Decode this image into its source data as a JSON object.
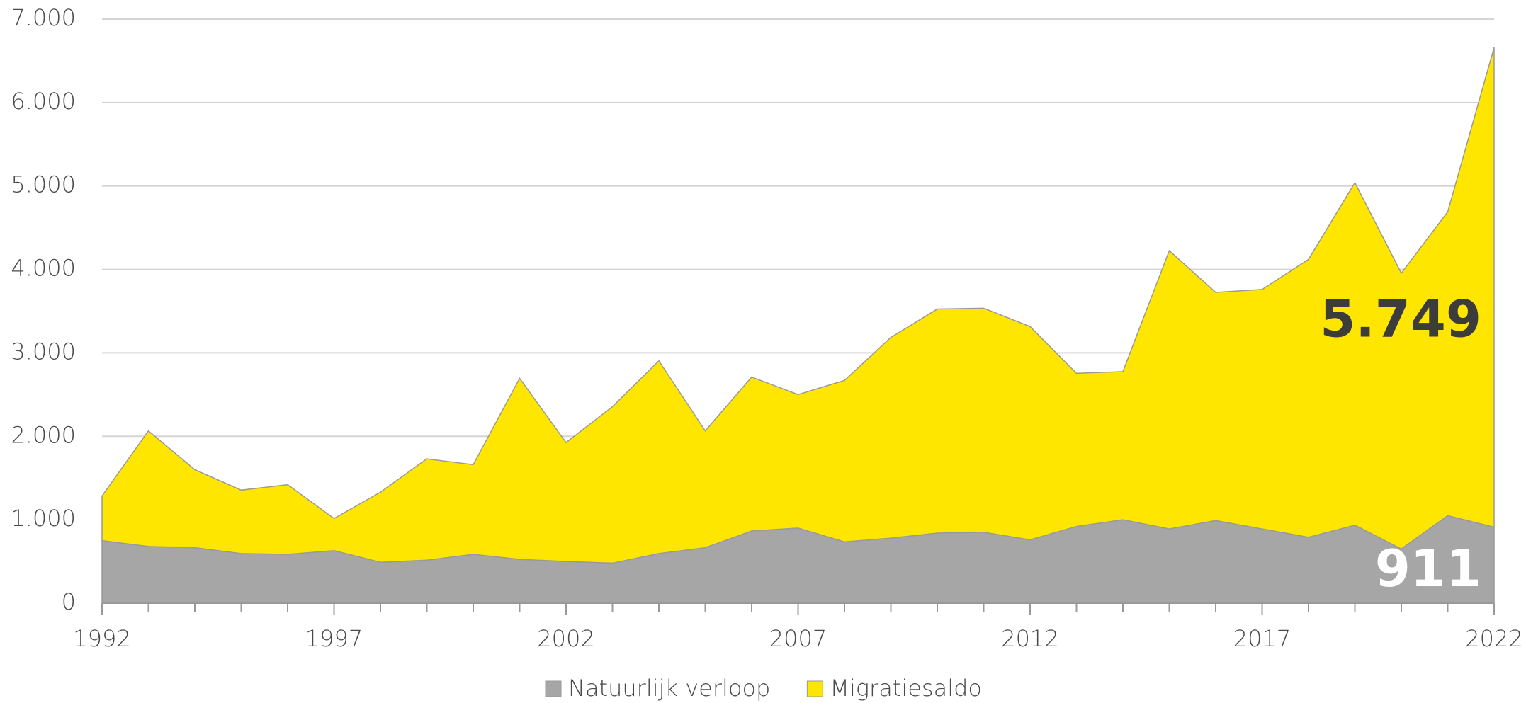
{
  "chart_data": {
    "type": "stacked-area",
    "x": [
      1992,
      1993,
      1994,
      1995,
      1996,
      1997,
      1998,
      1999,
      2000,
      2001,
      2002,
      2003,
      2004,
      2005,
      2006,
      2007,
      2008,
      2009,
      2010,
      2011,
      2012,
      2013,
      2014,
      2015,
      2016,
      2017,
      2018,
      2019,
      2020,
      2021,
      2022
    ],
    "series": [
      {
        "name": "Natuurlijk verloop",
        "color": "#a6a6a6",
        "values": [
          750,
          680,
          665,
          595,
          585,
          630,
          490,
          515,
          585,
          525,
          500,
          480,
          595,
          665,
          865,
          900,
          735,
          780,
          840,
          850,
          760,
          920,
          1000,
          890,
          990,
          890,
          790,
          935,
          650,
          1050,
          911
        ]
      },
      {
        "name": "Migratiesaldo",
        "color": "#ffe600",
        "values": [
          535,
          1385,
          935,
          760,
          835,
          385,
          840,
          1215,
          1075,
          2170,
          1425,
          1875,
          2310,
          1400,
          1845,
          1600,
          1935,
          2405,
          2685,
          2685,
          2555,
          1835,
          1775,
          3335,
          2735,
          2870,
          3330,
          4105,
          3305,
          3640,
          5749
        ],
        "value_labels": [
          null,
          null,
          null,
          null,
          null,
          null,
          null,
          null,
          null,
          null,
          null,
          null,
          null,
          null,
          null,
          null,
          null,
          null,
          null,
          null,
          null,
          null,
          null,
          null,
          null,
          null,
          null,
          null,
          null,
          null,
          "5.749"
        ]
      }
    ],
    "xlim": [
      1992,
      2022
    ],
    "xticks": [
      1992,
      1997,
      2002,
      2007,
      2012,
      2017,
      2022
    ],
    "ylim": [
      0,
      7000
    ],
    "yticks": [
      0,
      {
        "value": 1000,
        "label": "1.000"
      },
      {
        "value": 2000,
        "label": "2.000"
      },
      {
        "value": 3000,
        "label": "3.000"
      },
      {
        "value": 4000,
        "label": "4.000"
      },
      {
        "value": 5000,
        "label": "5.000"
      },
      {
        "value": 6000,
        "label": "6.000"
      },
      {
        "value": 7000,
        "label": "7.000"
      }
    ],
    "grid": true
  }
}
